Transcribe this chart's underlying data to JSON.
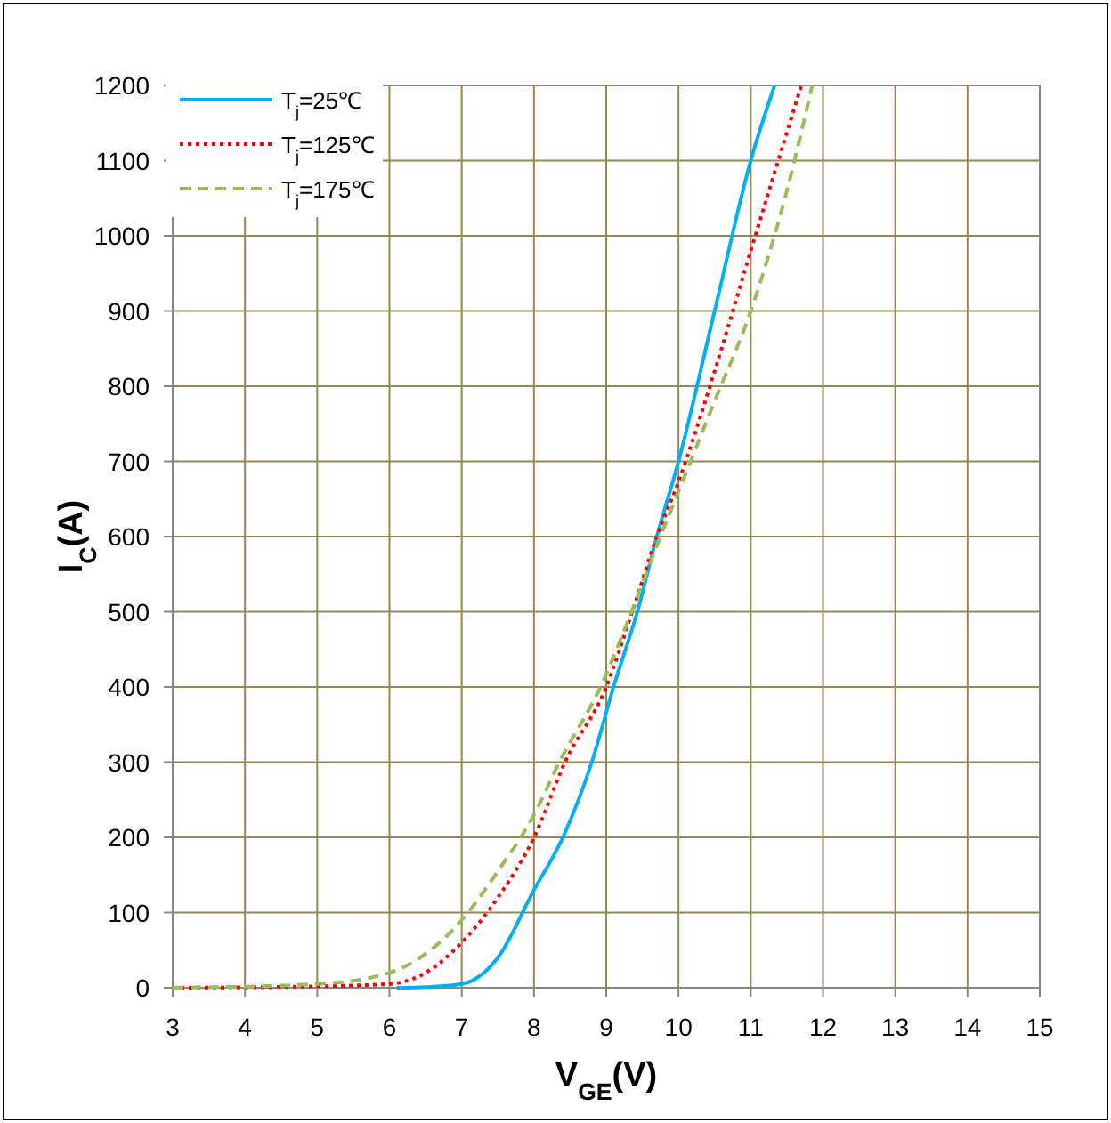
{
  "chart_data": {
    "type": "line",
    "xlabel": "V$_{GE}$(V)",
    "ylabel": "I$_{C}$(A)",
    "xlim": [
      3,
      15
    ],
    "xticks": [
      3,
      4,
      5,
      6,
      7,
      8,
      9,
      10,
      11,
      12,
      13,
      14,
      15
    ],
    "ylim": [
      0,
      1200
    ],
    "yticks": [
      0,
      100,
      200,
      300,
      400,
      500,
      600,
      700,
      800,
      900,
      1000,
      1100,
      1200
    ],
    "grid": true,
    "legend": "top left",
    "series": [
      {
        "name": "T$_{j}$=25℃",
        "color": "#00b0f0",
        "line_style": "solid",
        "x": [
          6.1,
          6.5,
          7,
          7.5,
          8,
          8.4,
          8.8,
          9.1,
          9.43,
          9.7,
          10,
          10.5,
          11,
          11.33
        ],
        "values": [
          0,
          1,
          5,
          40,
          130,
          200,
          300,
          400,
          500,
          600,
          700,
          900,
          1100,
          1200
        ]
      },
      {
        "name": "T$_{j}$=125℃",
        "color": "#ff0000",
        "line_style": "dotted",
        "x": [
          3,
          5,
          6,
          6.5,
          7,
          7.5,
          8,
          8.43,
          9,
          9.36,
          9.7,
          10,
          10.5,
          11,
          11.7
        ],
        "values": [
          0,
          2,
          5,
          20,
          60,
          120,
          200,
          300,
          400,
          500,
          600,
          673,
          820,
          980,
          1200
        ]
      },
      {
        "name": "T$_{j}$=175℃",
        "color": "#9bbb59",
        "line_style": "dashed",
        "x": [
          3,
          5,
          6,
          6.5,
          7,
          7.5,
          8,
          8.35,
          8.92,
          9.35,
          9.75,
          10,
          10.5,
          11,
          11.5,
          11.85
        ],
        "values": [
          0,
          5,
          20,
          45,
          90,
          155,
          230,
          300,
          400,
          500,
          600,
          660,
          780,
          900,
          1060,
          1200
        ]
      }
    ]
  }
}
